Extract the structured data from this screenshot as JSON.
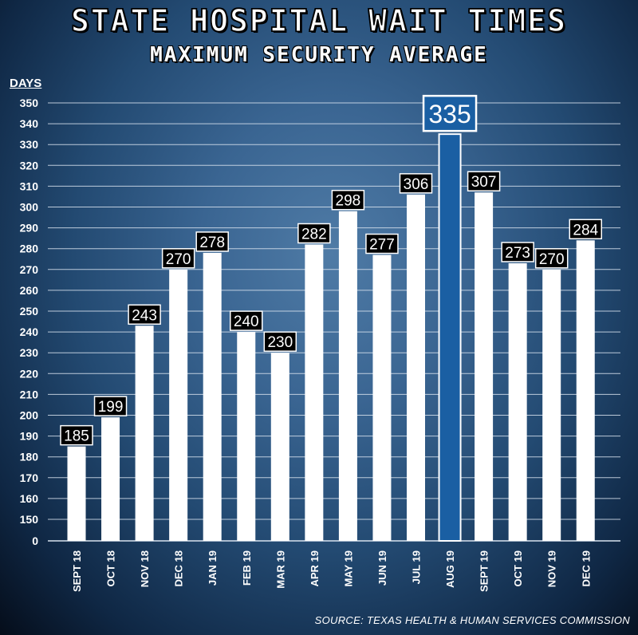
{
  "title": "STATE HOSPITAL WAIT TIMES",
  "subtitle": "MAXIMUM SECURITY AVERAGE",
  "source": "SOURCE: TEXAS HEALTH & HUMAN SERVICES COMMISSION",
  "colors": {
    "bar": "#ffffff",
    "highlight_bar": "#1a5fa3",
    "highlight_label_bg": "#1a5fa3",
    "label_bg": "#000000",
    "gridline": "#d8e2ee"
  },
  "chart_data": {
    "type": "bar",
    "ylabel": "DAYS",
    "ylim": [
      0,
      350
    ],
    "yticks": [
      0,
      150,
      160,
      170,
      180,
      190,
      200,
      210,
      220,
      230,
      240,
      250,
      260,
      270,
      280,
      290,
      300,
      310,
      320,
      330,
      340,
      350
    ],
    "scale_note": "axis break: 0 at bottom, then 150 to 350 in steps of 10",
    "grid": true,
    "categories": [
      "SEPT 18",
      "OCT 18",
      "NOV 18",
      "DEC 18",
      "JAN 19",
      "FEB 19",
      "MAR 19",
      "APR 19",
      "MAY 19",
      "JUN 19",
      "JUL 19",
      "AUG 19",
      "SEPT 19",
      "OCT 19",
      "NOV 19",
      "DEC 19"
    ],
    "values": [
      185,
      199,
      243,
      270,
      278,
      240,
      230,
      282,
      298,
      277,
      306,
      335,
      307,
      273,
      270,
      284
    ],
    "highlight_category": "AUG 19"
  }
}
